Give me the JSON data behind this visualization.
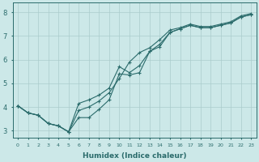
{
  "xlabel": "Humidex (Indice chaleur)",
  "xlim": [
    -0.5,
    23.5
  ],
  "ylim": [
    2.7,
    8.4
  ],
  "xticks": [
    0,
    1,
    2,
    3,
    4,
    5,
    6,
    7,
    8,
    9,
    10,
    11,
    12,
    13,
    14,
    15,
    16,
    17,
    18,
    19,
    20,
    21,
    22,
    23
  ],
  "yticks": [
    3,
    4,
    5,
    6,
    7,
    8
  ],
  "background_color": "#cce8e8",
  "grid_color": "#aacccc",
  "line_color": "#2a6b6b",
  "line1_x": [
    0,
    1,
    2,
    3,
    4,
    5,
    6,
    7,
    8,
    9,
    10,
    11,
    12,
    13,
    14,
    15,
    16,
    17,
    18,
    19,
    20,
    21,
    22,
    23
  ],
  "line1_y": [
    4.05,
    3.75,
    3.65,
    3.3,
    3.2,
    2.95,
    3.55,
    3.55,
    3.9,
    4.3,
    5.4,
    5.35,
    5.45,
    6.35,
    6.55,
    7.15,
    7.3,
    7.45,
    7.35,
    7.35,
    7.45,
    7.55,
    7.8,
    7.9
  ],
  "line2_x": [
    0,
    1,
    2,
    3,
    4,
    5,
    6,
    7,
    8,
    9,
    10,
    11,
    12,
    13,
    14,
    15,
    16,
    17,
    18,
    19,
    20,
    21,
    22,
    23
  ],
  "line2_y": [
    4.05,
    3.75,
    3.65,
    3.3,
    3.2,
    2.95,
    4.15,
    4.3,
    4.5,
    4.8,
    5.7,
    5.45,
    5.75,
    6.35,
    6.65,
    7.15,
    7.3,
    7.45,
    7.35,
    7.35,
    7.45,
    7.55,
    7.8,
    7.9
  ],
  "line3_x": [
    0,
    1,
    2,
    3,
    4,
    5,
    6,
    7,
    8,
    9,
    10,
    11,
    12,
    13,
    14,
    15,
    16,
    17,
    18,
    19,
    20,
    21,
    22,
    23
  ],
  "line3_y": [
    4.05,
    3.75,
    3.65,
    3.3,
    3.2,
    2.95,
    3.85,
    4.0,
    4.25,
    4.6,
    5.2,
    5.9,
    6.3,
    6.5,
    6.85,
    7.25,
    7.35,
    7.5,
    7.4,
    7.4,
    7.5,
    7.6,
    7.85,
    7.95
  ]
}
